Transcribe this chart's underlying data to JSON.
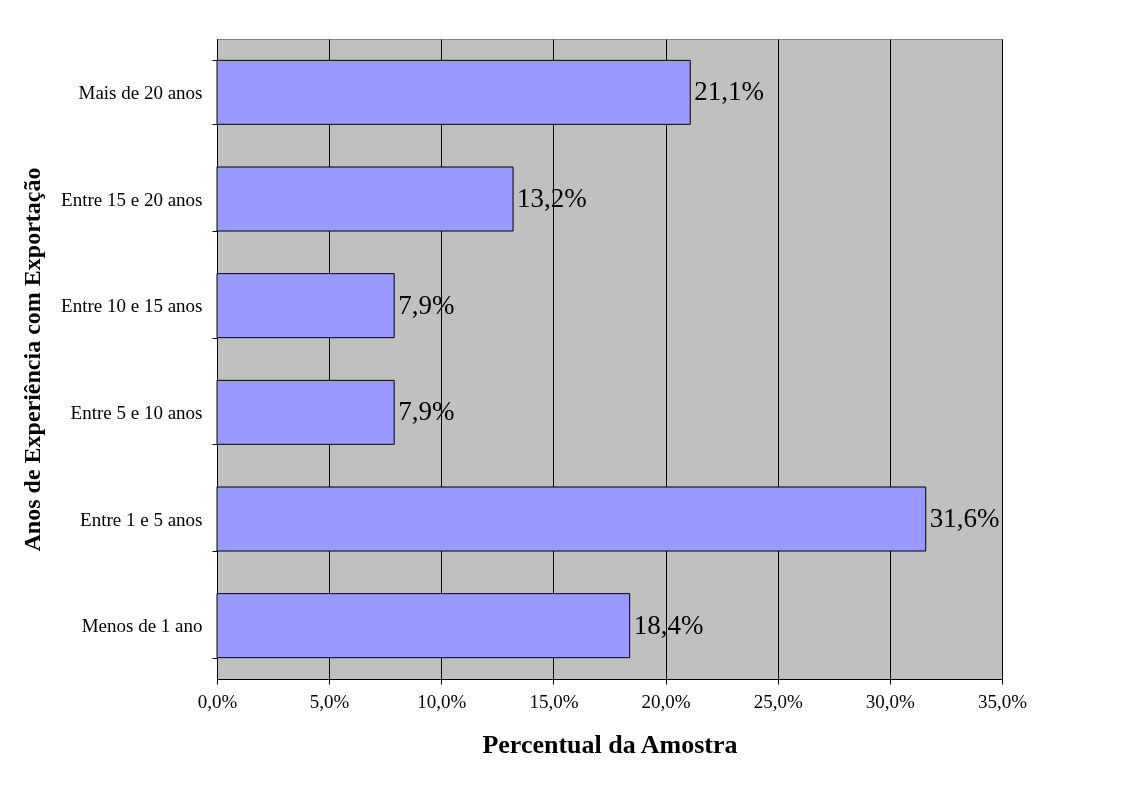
{
  "chart_data": {
    "type": "bar",
    "orientation": "horizontal",
    "xlabel": "Percentual da Amostra",
    "ylabel": "Anos de Experiência com Exportação",
    "categories": [
      "Mais de 20 anos",
      "Entre 15 e 20 anos",
      "Entre 10 e 15 anos",
      "Entre 5 e 10 anos",
      "Entre 1 e 5 anos",
      "Menos de 1 ano"
    ],
    "values": [
      21.1,
      13.2,
      7.9,
      7.9,
      31.6,
      18.4
    ],
    "value_labels": [
      "21,1%",
      "13,2%",
      "7,9%",
      "7,9%",
      "31,6%",
      "18,4%"
    ],
    "color": "#9999ff",
    "xlim": [
      0,
      35
    ],
    "xticks": [
      {
        "value": 0,
        "label": "0,0%"
      },
      {
        "value": 5,
        "label": "5,0%"
      },
      {
        "value": 10,
        "label": "10,0%"
      },
      {
        "value": 15,
        "label": "15,0%"
      },
      {
        "value": 20,
        "label": "20,0%"
      },
      {
        "value": 25,
        "label": "25,0%"
      },
      {
        "value": 30,
        "label": "30,0%"
      },
      {
        "value": 35,
        "label": "35,0%"
      }
    ],
    "grid": "x"
  }
}
